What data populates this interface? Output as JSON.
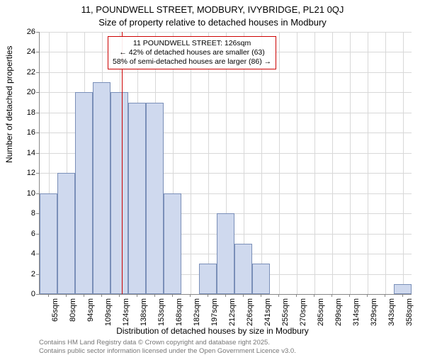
{
  "title_line1": "11, POUNDWELL STREET, MODBURY, IVYBRIDGE, PL21 0QJ",
  "title_line2": "Size of property relative to detached houses in Modbury",
  "y_axis_label": "Number of detached properties",
  "x_axis_label": "Distribution of detached houses by size in Modbury",
  "chart": {
    "type": "histogram",
    "background_color": "#ffffff",
    "grid_color": "#d8d8d8",
    "axis_color": "#888888",
    "bar_fill": "#cfd9ee",
    "bar_stroke": "#7a8fb8",
    "marker_color": "#cc0000",
    "ylim": [
      0,
      26
    ],
    "ytick_step": 2,
    "x_categories": [
      "65sqm",
      "80sqm",
      "94sqm",
      "109sqm",
      "124sqm",
      "138sqm",
      "153sqm",
      "168sqm",
      "182sqm",
      "197sqm",
      "212sqm",
      "226sqm",
      "241sqm",
      "255sqm",
      "270sqm",
      "285sqm",
      "299sqm",
      "314sqm",
      "329sqm",
      "343sqm",
      "358sqm"
    ],
    "values": [
      10,
      12,
      20,
      21,
      20,
      19,
      19,
      10,
      0,
      3,
      8,
      5,
      3,
      0,
      0,
      0,
      0,
      0,
      0,
      0,
      1
    ],
    "marker_value_sqm": 126,
    "bar_width_ratio": 1.0,
    "title_fontsize": 13,
    "label_fontsize": 12,
    "tick_fontsize": 11
  },
  "annotation": {
    "line1": "11 POUNDWELL STREET: 126sqm",
    "line2": "← 42% of detached houses are smaller (63)",
    "line3": "58% of semi-detached houses are larger (86) →",
    "border_color": "#cc0000",
    "fontsize": 10.5
  },
  "footnotes": {
    "line1": "Contains HM Land Registry data © Crown copyright and database right 2025.",
    "line2": "Contains public sector information licensed under the Open Government Licence v3.0.",
    "color": "#777777",
    "fontsize": 9.5
  }
}
